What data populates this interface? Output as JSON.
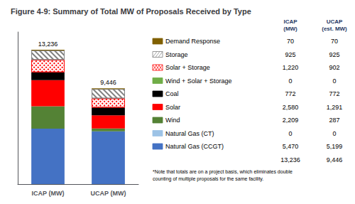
{
  "chart_data": {
    "type": "bar",
    "title": "Figure 4-9: Summary of Total MW of Proposals Received by Type",
    "categories": [
      "ICAP (MW)",
      "UCAP (MW)"
    ],
    "stacked": true,
    "grid": false,
    "tick_labels": "x",
    "ylim": [
      0,
      15000
    ],
    "series": [
      {
        "name": "Natural Gas (CCGT)",
        "color": "#4472C4",
        "values": [
          5470,
          5199
        ],
        "value_labels": [
          "5,470",
          "5,199"
        ]
      },
      {
        "name": "Natural Gas (CT)",
        "color": "#9DC3E6",
        "values": [
          0,
          0
        ],
        "value_labels": [
          "0",
          "0"
        ]
      },
      {
        "name": "Wind",
        "color": "#548235",
        "values": [
          2209,
          287
        ],
        "value_labels": [
          "2,209",
          "287"
        ]
      },
      {
        "name": "Solar",
        "color": "#FF0000",
        "values": [
          2580,
          1291
        ],
        "value_labels": [
          "2,580",
          "1,291"
        ]
      },
      {
        "name": "Coal",
        "color": "#000000",
        "values": [
          772,
          772
        ],
        "value_labels": [
          "772",
          "772"
        ]
      },
      {
        "name": "Wind + Solar + Storage",
        "color": "#70AD47",
        "values": [
          0,
          0
        ],
        "value_labels": [
          "0",
          "0"
        ]
      },
      {
        "name": "Solar + Storage",
        "color": "#FF0000",
        "marker": "cross",
        "values": [
          1220,
          902
        ],
        "value_labels": [
          "1,220",
          "902"
        ]
      },
      {
        "name": "Storage",
        "color": "#808080",
        "marker": "diagonal",
        "values": [
          925,
          925
        ],
        "value_labels": [
          "925",
          "925"
        ]
      },
      {
        "name": "Demand Response",
        "color": "#806000",
        "values": [
          70,
          70
        ],
        "value_labels": [
          "70",
          "70"
        ]
      }
    ],
    "totals": [
      13236,
      9446
    ],
    "total_labels": [
      "13,236",
      "9,446"
    ],
    "table_headers": [
      "ICAP",
      "(MW)",
      "UCAP",
      "(est. MW)"
    ],
    "annotations": [
      "*Note that totals are on a project basis, which eliminates double\ncounting of multiple proposals for the same facility."
    ]
  }
}
